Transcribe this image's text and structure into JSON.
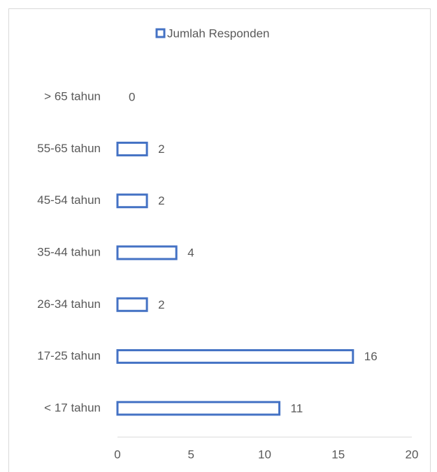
{
  "chart_data": {
    "type": "bar",
    "orientation": "horizontal",
    "categories": [
      "> 65 tahun",
      "55-65 tahun",
      "45-54 tahun",
      "35-44 tahun",
      "26-34 tahun",
      "17-25 tahun",
      "< 17 tahun"
    ],
    "series": [
      {
        "name": "Jumlah Responden",
        "color": "#4472c4",
        "values": [
          0,
          2,
          2,
          4,
          2,
          16,
          11
        ]
      }
    ],
    "xlim": [
      0,
      20
    ],
    "xticks": [
      0,
      5,
      10,
      15,
      20
    ],
    "legend": "top"
  }
}
